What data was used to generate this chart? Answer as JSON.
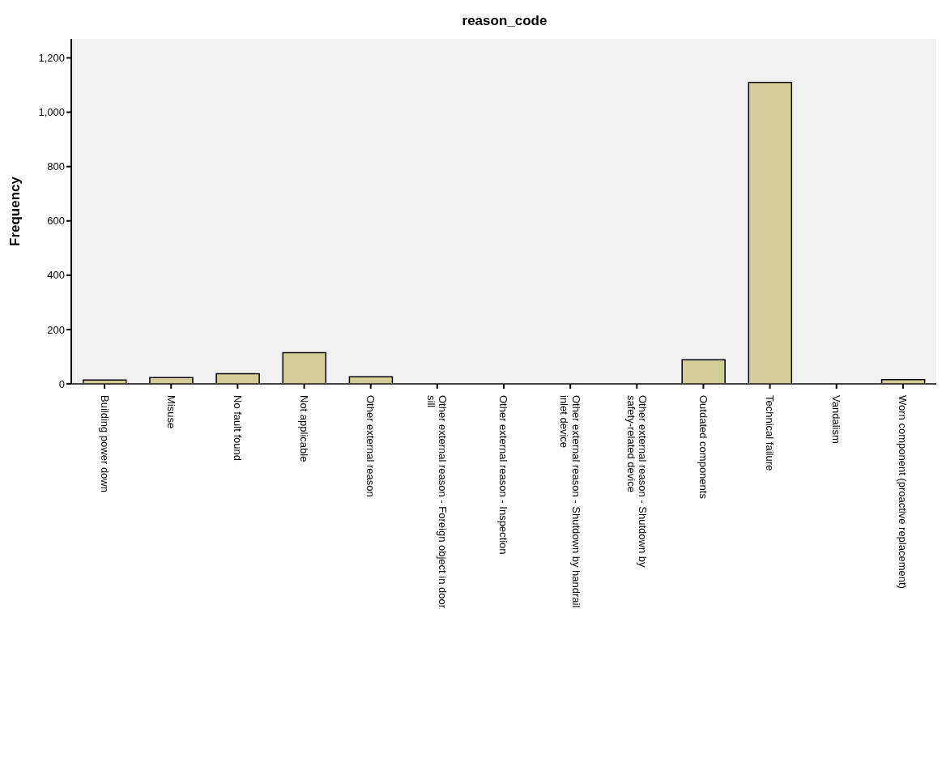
{
  "chart_data": {
    "type": "bar",
    "title": "reason_code",
    "ylabel": "Frequency",
    "categories": [
      "Building power down",
      "Misuse",
      "No fault found",
      "Not applicable",
      "Other external reason",
      "Other external reason - Foreign object in door sill",
      "Other external reason - Inspection",
      "Other external reason - Shutdown by handrail inlet device",
      "Other external reason - Shutdown by safety-related device",
      "Outdated components",
      "Technical failure",
      "Vandalism",
      "Worn component (proactive replacement)"
    ],
    "values": [
      14,
      23,
      37,
      115,
      26,
      1,
      1,
      1,
      1,
      89,
      1110,
      1,
      16
    ],
    "color": "#d3ce97",
    "ylim": [
      0,
      1270
    ],
    "yticks": [
      {
        "value": 0,
        "label": "0"
      },
      {
        "value": 200,
        "label": "200"
      },
      {
        "value": 400,
        "label": "400"
      },
      {
        "value": 600,
        "label": "600"
      },
      {
        "value": 800,
        "label": "800"
      },
      {
        "value": 1000,
        "label": "1,000"
      },
      {
        "value": 1200,
        "label": "1,200"
      }
    ],
    "grid": false
  }
}
